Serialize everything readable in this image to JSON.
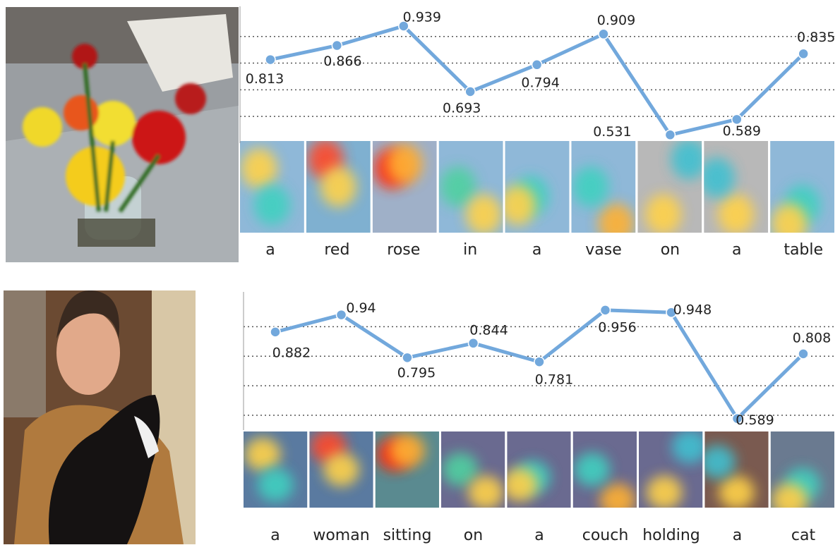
{
  "chart_data": [
    {
      "type": "line",
      "categories": [
        "a",
        "red",
        "rose",
        "in",
        "a",
        "vase",
        "on",
        "a",
        "table"
      ],
      "values": [
        0.813,
        0.866,
        0.939,
        0.693,
        0.794,
        0.909,
        0.531,
        0.589,
        0.835
      ],
      "color": "#72a8dc",
      "ylim": [
        0.5,
        0.96
      ],
      "yticks": [
        0.6,
        0.7,
        0.8,
        0.9
      ],
      "grid": true
    },
    {
      "type": "line",
      "categories": [
        "a",
        "woman",
        "sitting",
        "on",
        "a",
        "couch",
        "holding",
        "a",
        "cat"
      ],
      "values": [
        0.882,
        0.94,
        0.795,
        0.844,
        0.781,
        0.956,
        0.948,
        0.589,
        0.808
      ],
      "color": "#72a8dc",
      "ylim": [
        0.55,
        0.97
      ],
      "yticks": [
        0.6,
        0.7,
        0.8,
        0.9
      ],
      "grid": true
    }
  ]
}
